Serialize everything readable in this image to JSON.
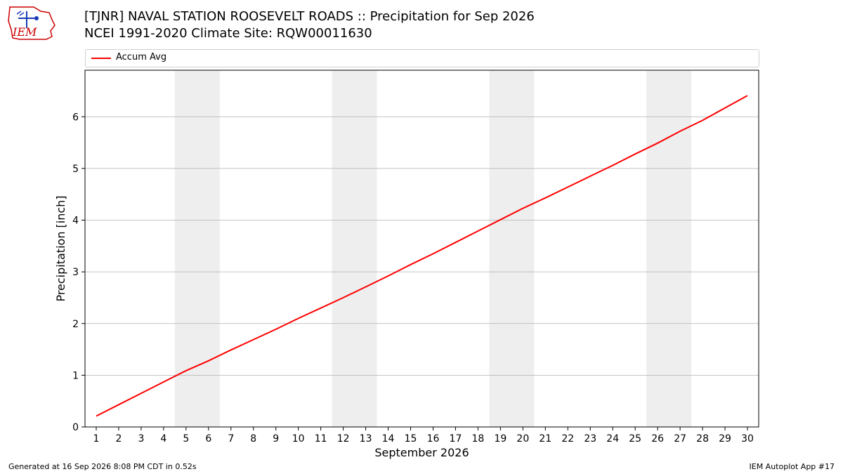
{
  "title_line1": "[TJNR] NAVAL STATION ROOSEVELT ROADS :: Precipitation for Sep 2026",
  "title_line2": "NCEI 1991-2020 Climate Site: RQW00011630",
  "logo_text": "IEM",
  "footer": {
    "left": "Generated at 16 Sep 2026 8:08 PM CDT in 0.52s",
    "right": "IEM Autoplot App #17"
  },
  "colors": {
    "series": "#ff0000",
    "weekend_shade": "#eeeeee",
    "grid": "#b0b0b0",
    "logo": "#cc0000"
  },
  "chart_data": {
    "type": "line",
    "xlabel": "September 2026",
    "ylabel": "Precipitation [inch]",
    "x": [
      1,
      2,
      3,
      4,
      5,
      6,
      7,
      8,
      9,
      10,
      11,
      12,
      13,
      14,
      15,
      16,
      17,
      18,
      19,
      20,
      21,
      22,
      23,
      24,
      25,
      26,
      27,
      28,
      29,
      30
    ],
    "xlim": [
      0.5,
      30.5
    ],
    "ylim": [
      0,
      6.9
    ],
    "yticks": [
      0,
      1,
      2,
      3,
      4,
      5,
      6
    ],
    "grid": "horizontal",
    "legend_position": "top",
    "shaded_ranges": [
      [
        4.5,
        6.5
      ],
      [
        11.5,
        13.5
      ],
      [
        18.5,
        20.5
      ],
      [
        25.5,
        27.5
      ]
    ],
    "series": [
      {
        "name": "Accum Avg",
        "values": [
          0.21,
          0.43,
          0.65,
          0.87,
          1.09,
          1.28,
          1.49,
          1.69,
          1.89,
          2.1,
          2.3,
          2.5,
          2.71,
          2.92,
          3.14,
          3.35,
          3.57,
          3.79,
          4.01,
          4.23,
          4.43,
          4.64,
          4.85,
          5.06,
          5.28,
          5.49,
          5.72,
          5.93,
          6.17,
          6.41
        ]
      }
    ]
  }
}
